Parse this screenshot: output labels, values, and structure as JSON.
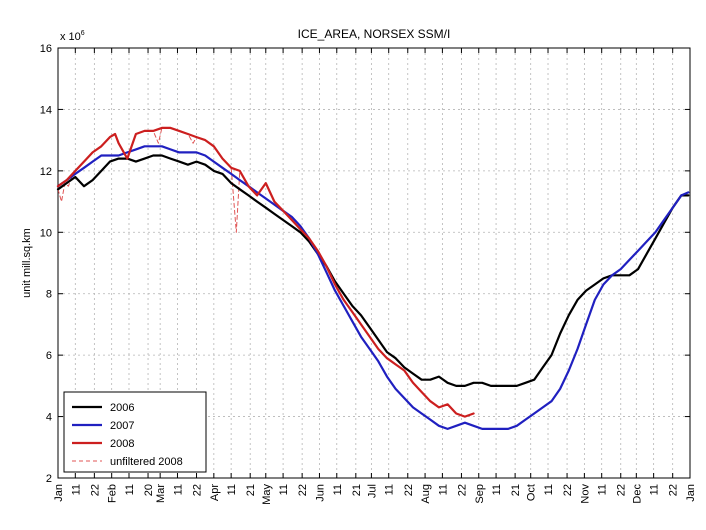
{
  "chart_data": {
    "type": "line",
    "title": "ICE_AREA, NORSEX SSM/I",
    "ylabel": "unit mill.sq.km",
    "y_multiplier_label": "x 10",
    "y_multiplier_exponent": "6",
    "ylim": [
      2,
      16
    ],
    "y_ticks": [
      2,
      4,
      6,
      8,
      10,
      12,
      14,
      16
    ],
    "y_tick_labels": [
      "2",
      "4",
      "6",
      "8",
      "10",
      "12",
      "14",
      "16"
    ],
    "xlim": [
      0,
      365
    ],
    "x_ticks": [
      0,
      10,
      21,
      31,
      41,
      52,
      59,
      69,
      80,
      90,
      100,
      111,
      120,
      130,
      141,
      151,
      161,
      172,
      181,
      191,
      202,
      212,
      222,
      233,
      243,
      253,
      264,
      273,
      283,
      294,
      304,
      314,
      325,
      334,
      344,
      355,
      365
    ],
    "x_tick_labels": [
      "Jan",
      "11",
      "22",
      "Feb",
      "11",
      "20",
      "Mar",
      "11",
      "22",
      "Apr",
      "11",
      "21",
      "May",
      "11",
      "22",
      "Jun",
      "11",
      "21",
      "Jul",
      "11",
      "22",
      "Aug",
      "11",
      "22",
      "Sep",
      "11",
      "21",
      "Oct",
      "11",
      "22",
      "Nov",
      "11",
      "22",
      "Dec",
      "11",
      "22",
      "Jan"
    ],
    "grid": true,
    "legend_position": "bottom-left",
    "series": [
      {
        "name": "2006",
        "color": "#000000",
        "style": "solid",
        "x": [
          0,
          5,
          10,
          15,
          20,
          25,
          30,
          35,
          40,
          45,
          50,
          55,
          60,
          65,
          70,
          75,
          80,
          85,
          90,
          95,
          100,
          105,
          110,
          115,
          120,
          125,
          130,
          135,
          140,
          145,
          150,
          155,
          160,
          165,
          170,
          175,
          180,
          185,
          190,
          195,
          200,
          205,
          210,
          215,
          220,
          225,
          230,
          235,
          240,
          245,
          250,
          255,
          260,
          265,
          270,
          275,
          280,
          285,
          290,
          295,
          300,
          305,
          310,
          315,
          320,
          325,
          330,
          335,
          340,
          345,
          350,
          355,
          360,
          364
        ],
        "y": [
          11.4,
          11.6,
          11.8,
          11.5,
          11.7,
          12.0,
          12.3,
          12.4,
          12.4,
          12.3,
          12.4,
          12.5,
          12.5,
          12.4,
          12.3,
          12.2,
          12.3,
          12.2,
          12.0,
          11.9,
          11.6,
          11.4,
          11.2,
          11.0,
          10.8,
          10.6,
          10.4,
          10.2,
          10.0,
          9.7,
          9.3,
          8.9,
          8.4,
          8.0,
          7.6,
          7.3,
          6.9,
          6.5,
          6.1,
          5.9,
          5.6,
          5.4,
          5.2,
          5.2,
          5.3,
          5.1,
          5.0,
          5.0,
          5.1,
          5.1,
          5.0,
          5.0,
          5.0,
          5.0,
          5.1,
          5.2,
          5.6,
          6.0,
          6.7,
          7.3,
          7.8,
          8.1,
          8.3,
          8.5,
          8.6,
          8.6,
          8.6,
          8.8,
          9.3,
          9.8,
          10.3,
          10.8,
          11.2,
          11.2
        ]
      },
      {
        "name": "2007",
        "color": "#2020c0",
        "style": "solid",
        "x": [
          0,
          5,
          10,
          15,
          20,
          25,
          30,
          35,
          40,
          45,
          50,
          55,
          60,
          65,
          70,
          75,
          80,
          85,
          90,
          95,
          100,
          105,
          110,
          115,
          120,
          125,
          130,
          135,
          140,
          145,
          150,
          155,
          160,
          165,
          170,
          175,
          180,
          185,
          190,
          195,
          200,
          205,
          210,
          215,
          220,
          225,
          230,
          235,
          240,
          245,
          250,
          255,
          260,
          265,
          270,
          275,
          280,
          285,
          290,
          295,
          300,
          305,
          310,
          315,
          320,
          325,
          330,
          335,
          340,
          345,
          350,
          355,
          360,
          364
        ],
        "y": [
          11.5,
          11.7,
          11.9,
          12.1,
          12.3,
          12.5,
          12.5,
          12.5,
          12.6,
          12.7,
          12.8,
          12.8,
          12.8,
          12.7,
          12.6,
          12.6,
          12.6,
          12.5,
          12.3,
          12.1,
          11.9,
          11.7,
          11.5,
          11.3,
          11.1,
          10.9,
          10.7,
          10.5,
          10.2,
          9.8,
          9.3,
          8.7,
          8.1,
          7.6,
          7.1,
          6.6,
          6.2,
          5.8,
          5.3,
          4.9,
          4.6,
          4.3,
          4.1,
          3.9,
          3.7,
          3.6,
          3.7,
          3.8,
          3.7,
          3.6,
          3.6,
          3.6,
          3.6,
          3.7,
          3.9,
          4.1,
          4.3,
          4.5,
          4.9,
          5.5,
          6.2,
          7.0,
          7.8,
          8.3,
          8.6,
          8.8,
          9.1,
          9.4,
          9.7,
          10.0,
          10.4,
          10.8,
          11.2,
          11.3
        ]
      },
      {
        "name": "2008",
        "color": "#cc1f1f",
        "style": "solid",
        "x": [
          0,
          5,
          10,
          15,
          20,
          25,
          30,
          33,
          35,
          40,
          45,
          50,
          55,
          60,
          65,
          70,
          75,
          80,
          85,
          90,
          95,
          100,
          105,
          110,
          115,
          120,
          125,
          130,
          135,
          140,
          145,
          150,
          155,
          160,
          165,
          170,
          175,
          180,
          185,
          190,
          195,
          200,
          205,
          210,
          215,
          220,
          225,
          230,
          235,
          240
        ],
        "y": [
          11.5,
          11.7,
          12.0,
          12.3,
          12.6,
          12.8,
          13.1,
          13.2,
          12.9,
          12.4,
          13.2,
          13.3,
          13.3,
          13.4,
          13.4,
          13.3,
          13.2,
          13.1,
          13.0,
          12.8,
          12.4,
          12.1,
          12.0,
          11.5,
          11.2,
          11.6,
          11.0,
          10.7,
          10.4,
          10.1,
          9.8,
          9.4,
          8.9,
          8.3,
          7.8,
          7.4,
          7.0,
          6.6,
          6.2,
          5.9,
          5.7,
          5.5,
          5.1,
          4.8,
          4.5,
          4.3,
          4.4,
          4.1,
          4.0,
          4.1
        ]
      },
      {
        "name": "unfiltered 2008",
        "color": "#e05555",
        "style": "dashed",
        "x": [
          0,
          2,
          4,
          6,
          8,
          10,
          15,
          20,
          25,
          30,
          33,
          35,
          40,
          45,
          50,
          55,
          58,
          60,
          65,
          70,
          75,
          78,
          80,
          85,
          90,
          95,
          100,
          103,
          105,
          110,
          115,
          120,
          125,
          130,
          135,
          140,
          145,
          150,
          155,
          160,
          165,
          170,
          175,
          180,
          185,
          190,
          195,
          200,
          205,
          210,
          215,
          220,
          225,
          230,
          235,
          240
        ],
        "y": [
          11.4,
          11.0,
          11.6,
          11.5,
          11.8,
          12.0,
          12.3,
          12.6,
          12.8,
          13.1,
          13.2,
          12.9,
          12.4,
          13.2,
          13.3,
          13.3,
          12.9,
          13.4,
          13.4,
          13.3,
          13.2,
          12.9,
          13.1,
          13.0,
          12.8,
          12.4,
          12.1,
          10.0,
          12.0,
          11.5,
          11.2,
          11.6,
          11.0,
          10.7,
          10.4,
          10.1,
          9.8,
          9.4,
          8.9,
          8.3,
          7.8,
          7.4,
          7.0,
          6.6,
          6.2,
          5.9,
          5.7,
          5.5,
          5.1,
          4.8,
          4.5,
          4.3,
          4.4,
          4.1,
          4.0,
          4.1
        ]
      }
    ]
  }
}
